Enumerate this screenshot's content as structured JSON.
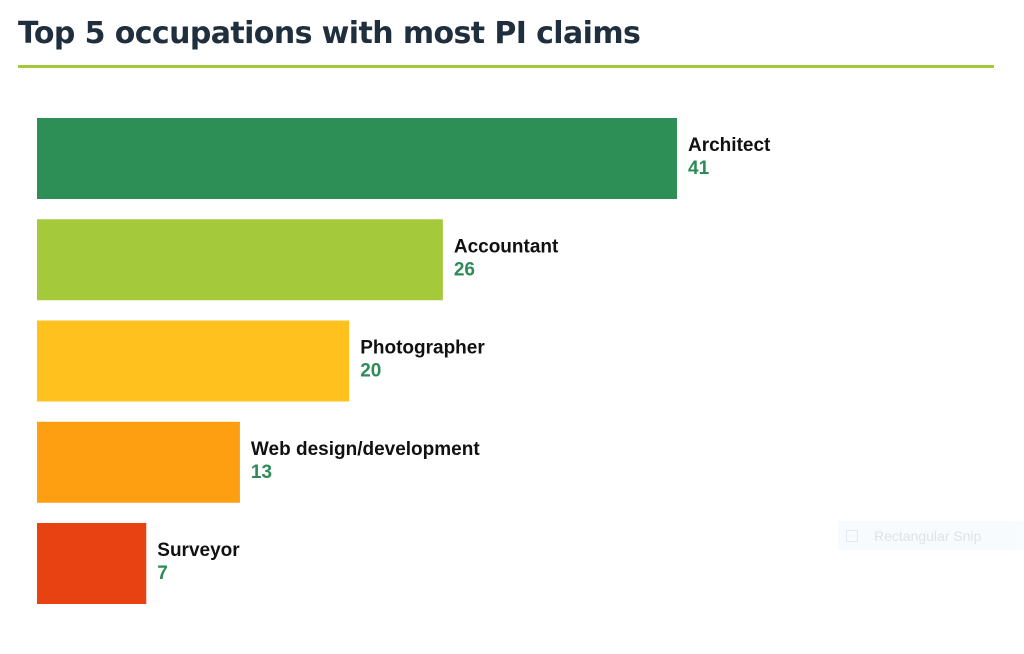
{
  "title": "Top 5 occupations with most PI claims",
  "chart_data": {
    "type": "bar",
    "orientation": "horizontal",
    "categories": [
      "Architect",
      "Accountant",
      "Photographer",
      "Web design/development",
      "Surveyor"
    ],
    "values": [
      41,
      26,
      20,
      13,
      7
    ],
    "colors": [
      "#2e8f56",
      "#a4c93b",
      "#fec11e",
      "#fd9f10",
      "#e84213"
    ],
    "value_color": "#2e8b57",
    "title": "Top 5 occupations with most PI claims",
    "xlabel": "",
    "ylabel": "",
    "xlim": [
      0,
      41
    ],
    "grid": false,
    "legend": "none"
  },
  "overlay": {
    "snip_label": "Rectangular Snip",
    "snip_icon": "snip-icon"
  }
}
